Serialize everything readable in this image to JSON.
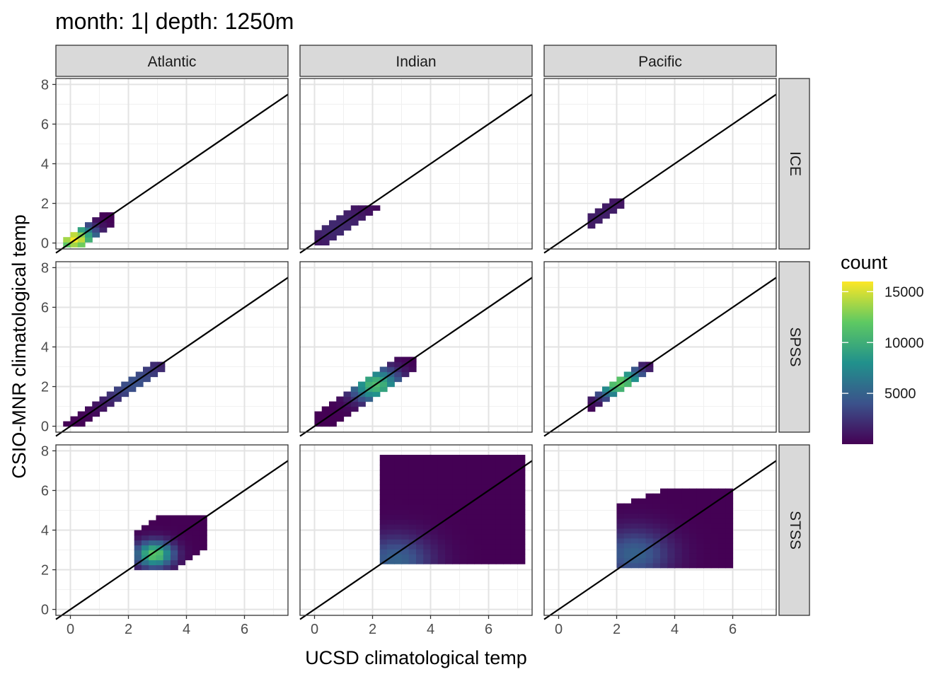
{
  "chart_data": {
    "type": "heatmap",
    "title": "month: 1| depth: 1250m",
    "xlabel": "UCSD climatological temp",
    "ylabel": "CSIO-MNR climatological temp",
    "xlim": [
      -0.5,
      7.5
    ],
    "ylim": [
      -0.3,
      8.3
    ],
    "x_ticks": [
      0,
      2,
      4,
      6
    ],
    "y_ticks": [
      0,
      2,
      4,
      6,
      8
    ],
    "grid": true,
    "reference_line": {
      "slope": 1,
      "intercept": 0
    },
    "bin_width": 0.25,
    "col_facets": [
      "Atlantic",
      "Indian",
      "Pacific"
    ],
    "row_facets": [
      "ICE",
      "SPSS",
      "STSS"
    ],
    "legend": {
      "title": "count",
      "position": "right",
      "min": 0,
      "max": 16000,
      "ticks": [
        5000,
        10000,
        15000
      ],
      "colors": [
        "#440154",
        "#3b528b",
        "#21918c",
        "#5ec962",
        "#fde725"
      ]
    },
    "panels": [
      {
        "col": "Atlantic",
        "row": "ICE",
        "xrange": [
          -0.25,
          1.5
        ],
        "yrange": [
          -0.2,
          1.4
        ],
        "half_width": 0.45,
        "slope": 1,
        "intercept": 0,
        "peak": [
          0.15,
          0.2
        ],
        "peak_count": 16000,
        "spread": 0.5
      },
      {
        "col": "Indian",
        "row": "ICE",
        "xrange": [
          0.0,
          2.1
        ],
        "yrange": [
          -0.1,
          1.9
        ],
        "half_width": 0.5,
        "slope": 1,
        "intercept": 0,
        "peak": [
          0.8,
          0.8
        ],
        "peak_count": 2000,
        "spread": 1.0
      },
      {
        "col": "Pacific",
        "row": "ICE",
        "xrange": [
          1.0,
          2.1
        ],
        "yrange": [
          0.5,
          2.2
        ],
        "half_width": 0.45,
        "slope": 1,
        "intercept": 0,
        "peak": [
          1.6,
          1.3
        ],
        "peak_count": 1500,
        "spread": 1.0
      },
      {
        "col": "Atlantic",
        "row": "SPSS",
        "xrange": [
          -0.25,
          3.2
        ],
        "yrange": [
          0.0,
          3.2
        ],
        "half_width": 0.45,
        "slope": 1,
        "intercept": 0,
        "peak": [
          2.2,
          2.2
        ],
        "peak_count": 4000,
        "spread": 1.0
      },
      {
        "col": "Indian",
        "row": "SPSS",
        "xrange": [
          0.0,
          3.3
        ],
        "yrange": [
          0.0,
          3.4
        ],
        "half_width": 0.5,
        "slope": 1,
        "intercept": 0,
        "peak": [
          2.1,
          2.1
        ],
        "peak_count": 11000,
        "spread": 0.6
      },
      {
        "col": "Pacific",
        "row": "SPSS",
        "xrange": [
          1.0,
          3.1
        ],
        "yrange": [
          0.5,
          3.2
        ],
        "half_width": 0.45,
        "slope": 1,
        "intercept": 0,
        "peak": [
          2.1,
          2.2
        ],
        "peak_count": 12000,
        "spread": 0.6
      },
      {
        "col": "Atlantic",
        "row": "STSS",
        "xrange": [
          2.2,
          4.7
        ],
        "yrange": [
          2.0,
          4.7
        ],
        "half_width": 1.6,
        "slope": 1,
        "intercept": 0,
        "peak": [
          2.9,
          2.8
        ],
        "peak_count": 12000,
        "spread": 0.45
      },
      {
        "col": "Indian",
        "row": "STSS",
        "xrange": [
          2.25,
          7.1
        ],
        "yrange": [
          2.3,
          7.8
        ],
        "half_width": 5.0,
        "slope": 0.25,
        "intercept": 2.6,
        "peak": [
          2.8,
          2.5
        ],
        "peak_count": 5000,
        "spread": 0.9
      },
      {
        "col": "Pacific",
        "row": "STSS",
        "xrange": [
          2.0,
          5.9
        ],
        "yrange": [
          2.1,
          5.9
        ],
        "half_width": 2.8,
        "slope": 0.45,
        "intercept": 1.6,
        "peak": [
          2.6,
          2.8
        ],
        "peak_count": 5000,
        "spread": 0.9
      }
    ]
  }
}
